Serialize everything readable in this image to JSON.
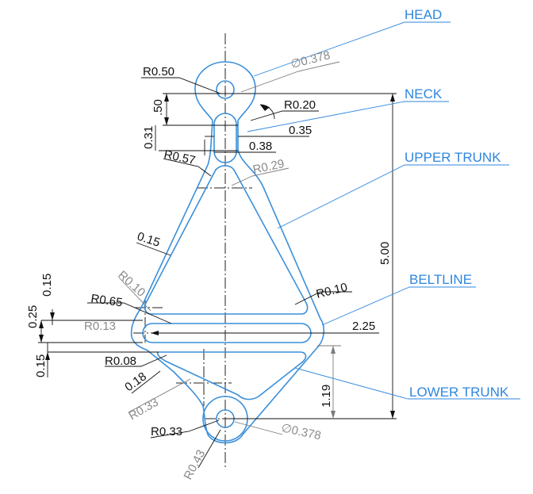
{
  "labels": {
    "head": "HEAD",
    "neck": "NECK",
    "upper_trunk": "UPPER TRUNK",
    "beltline": "BELTLINE",
    "lower_trunk": "LOWER TRUNK"
  },
  "dims": {
    "r050": "R0.50",
    "dia_head": "∅0.378",
    "r020": "R0.20",
    "d035": "0.35",
    "d050": ".50",
    "d031": "0.31",
    "d038": "0.38",
    "r057": "R0.57",
    "r029": "R0.29",
    "d015_upper": "0.15",
    "d500": "5.00",
    "r010_left": "R0.10",
    "r010_right": "R0.10",
    "d015_left": "0.15",
    "r065": "R0.65",
    "d025": "0.25",
    "r013": "R0.13",
    "d225": "2.25",
    "r008": "R0.08",
    "d015_lower": "0.15",
    "d018": "0.18",
    "d119": "1.19",
    "r033_grey": "R0.33",
    "r033": "R0.33",
    "dia_foot": "∅0.378",
    "r043": "R0.43"
  },
  "colors": {
    "part_outline": "#3a8fd9",
    "label": "#2e86de",
    "dimension": "#111111",
    "dimension_reference": "#8a8a8a"
  }
}
